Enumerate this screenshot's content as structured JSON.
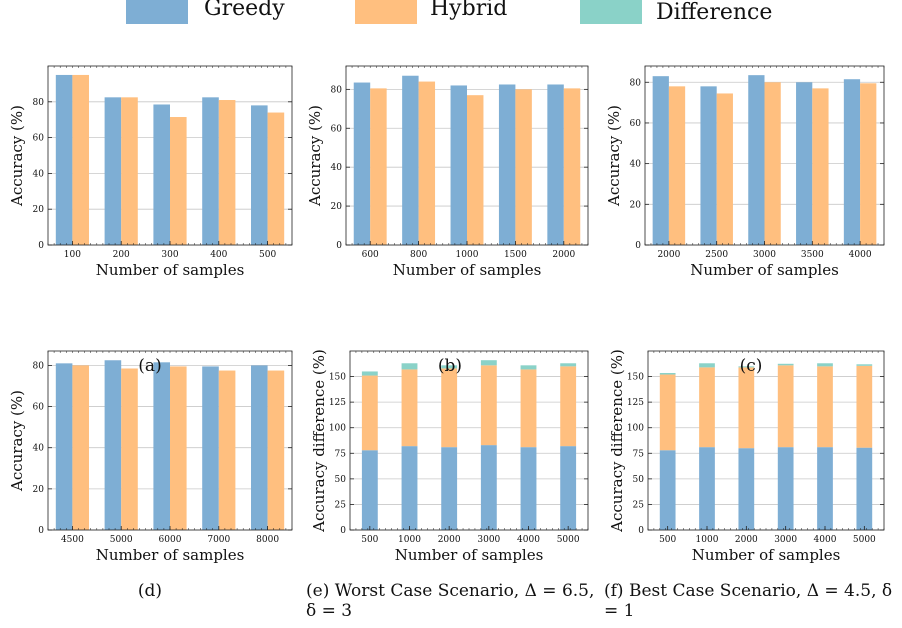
{
  "legend": {
    "items": [
      {
        "label": "Greedy",
        "color": "#7eaed4"
      },
      {
        "label": "Hybrid",
        "color": "#ffbf7f"
      },
      {
        "label": "Difference",
        "color": "#8ad2c8"
      }
    ]
  },
  "chart_data": [
    {
      "id": "a",
      "type": "bar",
      "caption": "(a)",
      "xlabel": "Number of samples",
      "ylabel": "Accuracy (%)",
      "categories": [
        "100",
        "200",
        "300",
        "400",
        "500"
      ],
      "ylim": [
        0,
        100
      ],
      "yticks": [
        0,
        20,
        40,
        60,
        80
      ],
      "grid": true,
      "series": [
        {
          "name": "Greedy",
          "values": [
            95,
            82.5,
            78.5,
            82.5,
            78
          ]
        },
        {
          "name": "Hybrid",
          "values": [
            95,
            82.5,
            71.5,
            81,
            74
          ]
        }
      ]
    },
    {
      "id": "b",
      "type": "bar",
      "caption": "(b)",
      "xlabel": "Number of samples",
      "ylabel": "Accuracy (%)",
      "categories": [
        "600",
        "800",
        "1000",
        "1500",
        "2000"
      ],
      "ylim": [
        0,
        92
      ],
      "yticks": [
        0,
        20,
        40,
        60,
        80
      ],
      "grid": true,
      "series": [
        {
          "name": "Greedy",
          "values": [
            83.5,
            87,
            82,
            82.5,
            82.5
          ]
        },
        {
          "name": "Hybrid",
          "values": [
            80.5,
            84,
            77,
            80,
            80.5
          ]
        }
      ]
    },
    {
      "id": "c",
      "type": "bar",
      "caption": "(c)",
      "xlabel": "Number of samples",
      "ylabel": "Accuracy (%)",
      "categories": [
        "2000",
        "2500",
        "3000",
        "3500",
        "4000"
      ],
      "ylim": [
        0,
        88
      ],
      "yticks": [
        0,
        20,
        40,
        60,
        80
      ],
      "grid": true,
      "series": [
        {
          "name": "Greedy",
          "values": [
            83,
            78,
            83.5,
            80,
            81.5
          ]
        },
        {
          "name": "Hybrid",
          "values": [
            78,
            74.5,
            80,
            77,
            79.5
          ]
        }
      ]
    },
    {
      "id": "d",
      "type": "bar",
      "caption": "(d)",
      "xlabel": "Number of samples",
      "ylabel": "Accuracy (%)",
      "categories": [
        "4500",
        "5000",
        "6000",
        "7000",
        "8000"
      ],
      "ylim": [
        0,
        87
      ],
      "yticks": [
        0,
        20,
        40,
        60,
        80
      ],
      "grid": true,
      "series": [
        {
          "name": "Greedy",
          "values": [
            81,
            82.5,
            81.5,
            79.5,
            80
          ]
        },
        {
          "name": "Hybrid",
          "values": [
            80,
            78.5,
            79.5,
            77.5,
            77.5
          ]
        }
      ]
    },
    {
      "id": "e",
      "type": "bar",
      "stacked": true,
      "caption": "(e) Worst Case Scenario, Δ = 6.5, δ = 3",
      "xlabel": "Number of samples",
      "ylabel": "Accuracy difference (%)",
      "categories": [
        "500",
        "1000",
        "2000",
        "3000",
        "4000",
        "5000"
      ],
      "ylim": [
        0,
        175
      ],
      "yticks": [
        0,
        25,
        50,
        75,
        100,
        125,
        150
      ],
      "grid": true,
      "series": [
        {
          "name": "Greedy",
          "values": [
            78,
            82,
            81,
            83,
            81,
            82
          ]
        },
        {
          "name": "Hybrid",
          "values": [
            73,
            75,
            77,
            78,
            76,
            78
          ]
        },
        {
          "name": "Difference",
          "values": [
            4,
            6,
            3,
            5,
            4,
            3
          ]
        }
      ]
    },
    {
      "id": "f",
      "type": "bar",
      "stacked": true,
      "caption": "(f) Best Case Scenario, Δ = 4.5, δ = 1",
      "xlabel": "Number of samples",
      "ylabel": "Accuracy difference (%)",
      "categories": [
        "500",
        "1000",
        "2000",
        "3000",
        "4000",
        "5000"
      ],
      "ylim": [
        0,
        175
      ],
      "yticks": [
        0,
        25,
        50,
        75,
        100,
        125,
        150
      ],
      "grid": true,
      "series": [
        {
          "name": "Greedy",
          "values": [
            78,
            81,
            80,
            81,
            81,
            80.5
          ]
        },
        {
          "name": "Hybrid",
          "values": [
            74,
            78,
            79,
            80,
            79,
            80
          ]
        },
        {
          "name": "Difference",
          "values": [
            1.5,
            4,
            1,
            1.5,
            3,
            1.5
          ]
        }
      ]
    }
  ]
}
